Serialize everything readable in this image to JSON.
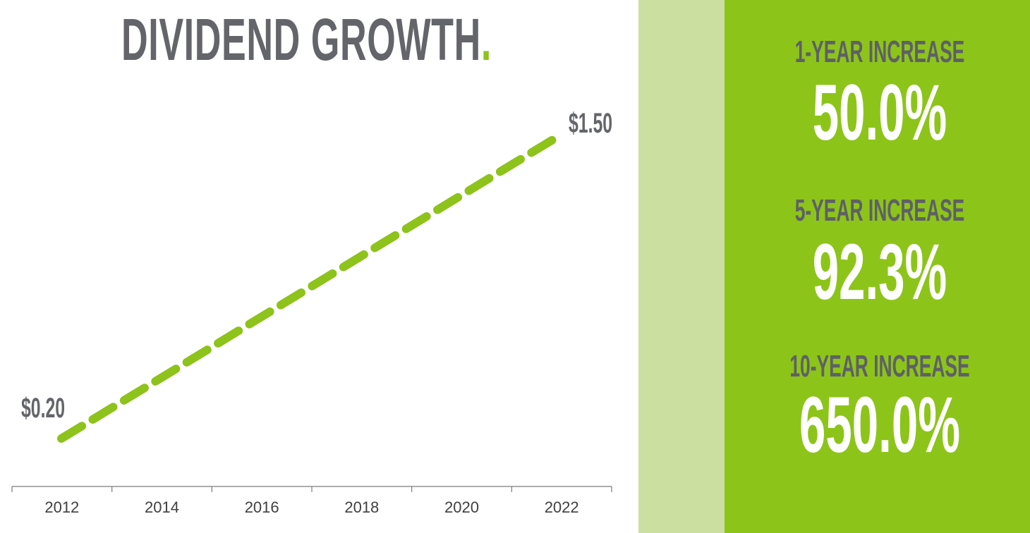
{
  "title": {
    "text": "DIVIDEND GROWTH",
    "dot": "."
  },
  "colors": {
    "accent": "#8dc31a",
    "pale_accent": "#cadfa0",
    "text_gray": "#64656a",
    "stat_text": "#ffffff"
  },
  "chart_data": {
    "type": "line",
    "title": "DIVIDEND GROWTH.",
    "x": [
      2012,
      2022
    ],
    "values": [
      0.2,
      1.5
    ],
    "line_style": "dashed",
    "series": [
      {
        "values": [
          0.2,
          1.5
        ]
      }
    ],
    "x_ticks": [
      "2012",
      "2014",
      "2016",
      "2018",
      "2020",
      "2022"
    ],
    "data_labels": [
      "$0.20",
      "$1.50"
    ],
    "xlim": [
      2012,
      2022
    ],
    "ylim": [
      0,
      1.6
    ],
    "grid": false,
    "legend": "none"
  },
  "stats": [
    {
      "label": "1-YEAR INCREASE",
      "value": "50.0%"
    },
    {
      "label": "5-YEAR INCREASE",
      "value": "92.3%"
    },
    {
      "label": "10-YEAR INCREASE",
      "value": "650.0%"
    }
  ]
}
